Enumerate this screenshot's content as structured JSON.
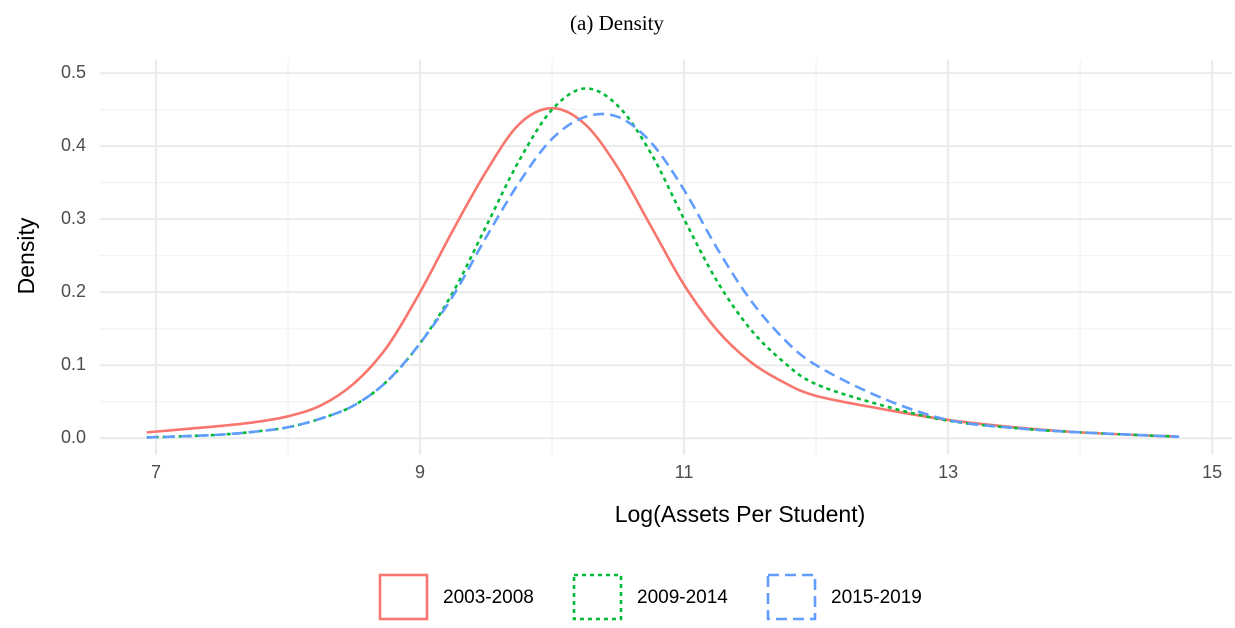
{
  "chart_data": {
    "type": "line",
    "title": "(a) Density",
    "x_label": "Log(Assets Per Student)",
    "y_label": "Density",
    "x": [
      6.93,
      7.25,
      7.5,
      7.75,
      8,
      8.25,
      8.5,
      8.75,
      9,
      9.25,
      9.5,
      9.75,
      10,
      10.25,
      10.5,
      10.75,
      11,
      11.25,
      11.5,
      11.75,
      12,
      12.5,
      13,
      13.5,
      14,
      14.75
    ],
    "series": [
      {
        "name": "2003-2008",
        "color": "#f8766d",
        "linetype": "solid",
        "values": [
          0.008,
          0.013,
          0.017,
          0.022,
          0.03,
          0.045,
          0.075,
          0.125,
          0.2,
          0.285,
          0.365,
          0.43,
          0.452,
          0.43,
          0.37,
          0.29,
          0.21,
          0.148,
          0.105,
          0.077,
          0.058,
          0.04,
          0.025,
          0.015,
          0.008,
          0.002
        ]
      },
      {
        "name": "2009-2014",
        "color": "#00ba38",
        "linetype": "dotted",
        "values": [
          0.001,
          0.003,
          0.005,
          0.009,
          0.015,
          0.027,
          0.045,
          0.078,
          0.13,
          0.2,
          0.29,
          0.38,
          0.45,
          0.479,
          0.455,
          0.39,
          0.3,
          0.215,
          0.15,
          0.105,
          0.074,
          0.045,
          0.024,
          0.014,
          0.008,
          0.002
        ]
      },
      {
        "name": "2015-2019",
        "color": "#619cff",
        "linetype": "dashed",
        "values": [
          0.001,
          0.003,
          0.005,
          0.009,
          0.015,
          0.027,
          0.045,
          0.078,
          0.13,
          0.195,
          0.275,
          0.35,
          0.41,
          0.44,
          0.44,
          0.405,
          0.34,
          0.26,
          0.19,
          0.137,
          0.1,
          0.055,
          0.025,
          0.014,
          0.008,
          0.002
        ]
      }
    ],
    "xlim": [
      6.576,
      15.15
    ],
    "ylim": [
      -0.023,
      0.518
    ],
    "xticks": [
      7,
      9,
      11,
      13,
      15
    ],
    "yticks": [
      {
        "value": 0,
        "label": "0.0"
      },
      0.1,
      0.2,
      0.3,
      0.4,
      0.5
    ],
    "x_minor_ticks": [
      8,
      10,
      12,
      14
    ],
    "y_minor_ticks": [
      0.05,
      0.15,
      0.25,
      0.35,
      0.45
    ],
    "grid": true,
    "legend": "bottom"
  }
}
